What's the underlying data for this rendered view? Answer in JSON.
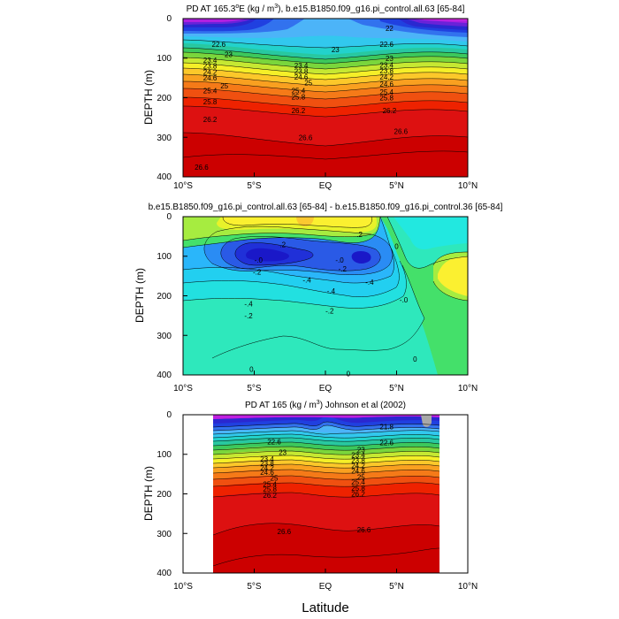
{
  "figure": {
    "xlabel": "Latitude"
  },
  "chart_data": [
    {
      "type": "heatmap",
      "title": "PD AT 165.3°E (kg / m³), b.e15.B1850.f09_g16.pi_control.all.63 [65-84]",
      "title_parts": {
        "pre": "PD AT 165.3",
        "sup1": "o",
        "mid": "E (kg / m",
        "sup2": "3",
        "post": "), b.e15.B1850.f09_g16.pi_control.all.63 [65-84]"
      },
      "ylabel": "DEPTH (m)",
      "xlim": [
        -10,
        10
      ],
      "ylim": [
        400,
        0
      ],
      "x_ticks": [
        -10,
        -5,
        0,
        5,
        10
      ],
      "x_tick_labels": [
        "10°S",
        "5°S",
        "EQ",
        "5°N",
        "10°N"
      ],
      "y_ticks": [
        0,
        100,
        200,
        300,
        400
      ],
      "y_tick_labels": [
        "0",
        "100",
        "200",
        "300",
        "400"
      ],
      "contour_interval": 0.2,
      "contour_labels": [
        {
          "text": "22.6",
          "x": -7.5,
          "y": 65
        },
        {
          "text": "23",
          "x": -6.8,
          "y": 90
        },
        {
          "text": "23.4",
          "x": -8.1,
          "y": 105
        },
        {
          "text": "23.8",
          "x": -8.1,
          "y": 120
        },
        {
          "text": "24.2",
          "x": -8.1,
          "y": 135
        },
        {
          "text": "24.6",
          "x": -8.1,
          "y": 150
        },
        {
          "text": "25",
          "x": -7.1,
          "y": 170
        },
        {
          "text": "25.4",
          "x": -8.1,
          "y": 182
        },
        {
          "text": "25.8",
          "x": -8.1,
          "y": 210
        },
        {
          "text": "26.2",
          "x": -8.1,
          "y": 255
        },
        {
          "text": "26.6",
          "x": -8.7,
          "y": 375
        },
        {
          "text": "23",
          "x": 0.7,
          "y": 78
        },
        {
          "text": "23.4",
          "x": -1.7,
          "y": 118
        },
        {
          "text": "23.8",
          "x": -1.7,
          "y": 133
        },
        {
          "text": "24.6",
          "x": -1.7,
          "y": 147
        },
        {
          "text": "25",
          "x": -1.2,
          "y": 162
        },
        {
          "text": "25.4",
          "x": -1.9,
          "y": 182
        },
        {
          "text": "25.8",
          "x": -1.9,
          "y": 198
        },
        {
          "text": "26.2",
          "x": -1.9,
          "y": 232
        },
        {
          "text": "26.6",
          "x": -1.4,
          "y": 300
        },
        {
          "text": "22.6",
          "x": 4.3,
          "y": 65
        },
        {
          "text": "23",
          "x": 4.5,
          "y": 100
        },
        {
          "text": "23.4",
          "x": 4.3,
          "y": 117
        },
        {
          "text": "23.8",
          "x": 4.3,
          "y": 132
        },
        {
          "text": "24.2",
          "x": 4.3,
          "y": 148
        },
        {
          "text": "24.6",
          "x": 4.3,
          "y": 165
        },
        {
          "text": "25.4",
          "x": 4.3,
          "y": 185
        },
        {
          "text": "25.8",
          "x": 4.3,
          "y": 200
        },
        {
          "text": "26.2",
          "x": 4.5,
          "y": 232
        },
        {
          "text": "26.6",
          "x": 5.3,
          "y": 285
        },
        {
          "text": "22",
          "x": 4.5,
          "y": 25
        }
      ]
    },
    {
      "type": "heatmap",
      "title": "b.e15.B1850.f09_g16.pi_control.all.63 [65-84] - b.e15.B1850.f09_g16.pi_control.36 [65-84]",
      "ylabel": "DEPTH (m)",
      "xlim": [
        -10,
        10
      ],
      "ylim": [
        400,
        0
      ],
      "x_ticks": [
        -10,
        -5,
        0,
        5,
        10
      ],
      "x_tick_labels": [
        "10°S",
        "5°S",
        "EQ",
        "5°N",
        "10°N"
      ],
      "y_ticks": [
        0,
        100,
        200,
        300,
        400
      ],
      "y_tick_labels": [
        "0",
        "100",
        "200",
        "300",
        "400"
      ],
      "contour_interval": 0.1,
      "contour_labels": [
        {
          "text": ".2",
          "x": -3.0,
          "y": 70
        },
        {
          "text": ".2",
          "x": 2.4,
          "y": 45
        },
        {
          "text": "0",
          "x": 5.0,
          "y": 75
        },
        {
          "text": "-.0",
          "x": -4.7,
          "y": 110
        },
        {
          "text": "-.2",
          "x": -4.8,
          "y": 140
        },
        {
          "text": "-.0",
          "x": 1.0,
          "y": 110
        },
        {
          "text": "-.2",
          "x": 1.2,
          "y": 132
        },
        {
          "text": "-.4",
          "x": -1.3,
          "y": 160
        },
        {
          "text": "-.4",
          "x": 3.1,
          "y": 165
        },
        {
          "text": "-.4",
          "x": 0.4,
          "y": 188
        },
        {
          "text": "-.4",
          "x": -5.4,
          "y": 220
        },
        {
          "text": "-.2",
          "x": -5.4,
          "y": 250
        },
        {
          "text": "-.2",
          "x": 0.3,
          "y": 238
        },
        {
          "text": "-.0",
          "x": 5.5,
          "y": 210
        },
        {
          "text": "0",
          "x": 6.3,
          "y": 360
        },
        {
          "text": "0",
          "x": -5.2,
          "y": 385
        },
        {
          "text": "0",
          "x": 1.6,
          "y": 397
        }
      ]
    },
    {
      "type": "heatmap",
      "title": "PD AT 165 (kg / m³) Johnson et al (2002)",
      "title_parts": {
        "pre": "PD AT 165 (kg / m",
        "sup": "3",
        "post": ") Johnson et al (2002)"
      },
      "ylabel": "DEPTH (m)",
      "xlim": [
        -10,
        10
      ],
      "ylim": [
        400,
        0
      ],
      "data_xrange": [
        -8,
        8
      ],
      "x_ticks": [
        -10,
        -5,
        0,
        5,
        10
      ],
      "x_tick_labels": [
        "10°S",
        "5°S",
        "EQ",
        "5°N",
        "10°N"
      ],
      "y_ticks": [
        0,
        100,
        200,
        300,
        400
      ],
      "y_tick_labels": [
        "0",
        "100",
        "200",
        "300",
        "400"
      ],
      "contour_interval": 0.2,
      "contour_labels": [
        {
          "text": "21.8",
          "x": 4.3,
          "y": 30
        },
        {
          "text": "22.6",
          "x": -3.6,
          "y": 68
        },
        {
          "text": "22.6",
          "x": 4.3,
          "y": 70
        },
        {
          "text": "23",
          "x": -3.0,
          "y": 95
        },
        {
          "text": "23",
          "x": 2.5,
          "y": 88
        },
        {
          "text": "23.4",
          "x": -4.1,
          "y": 112
        },
        {
          "text": "23.4",
          "x": 2.3,
          "y": 102
        },
        {
          "text": "23.8",
          "x": -4.1,
          "y": 123
        },
        {
          "text": "23.8",
          "x": 2.3,
          "y": 115
        },
        {
          "text": "24.2",
          "x": -4.1,
          "y": 134
        },
        {
          "text": "24.2",
          "x": 2.3,
          "y": 128
        },
        {
          "text": "24.6",
          "x": -4.1,
          "y": 145
        },
        {
          "text": "24.6",
          "x": 2.3,
          "y": 142
        },
        {
          "text": "25",
          "x": -3.6,
          "y": 160
        },
        {
          "text": "25",
          "x": 2.5,
          "y": 157
        },
        {
          "text": "25.4",
          "x": -3.9,
          "y": 175
        },
        {
          "text": "25.4",
          "x": 2.3,
          "y": 170
        },
        {
          "text": "25.8",
          "x": -3.9,
          "y": 188
        },
        {
          "text": "25.8",
          "x": 2.3,
          "y": 185
        },
        {
          "text": "26.2",
          "x": -3.9,
          "y": 203
        },
        {
          "text": "26.2",
          "x": 2.3,
          "y": 200
        },
        {
          "text": "26.6",
          "x": -2.9,
          "y": 295
        },
        {
          "text": "26.6",
          "x": 2.7,
          "y": 290
        }
      ]
    }
  ]
}
